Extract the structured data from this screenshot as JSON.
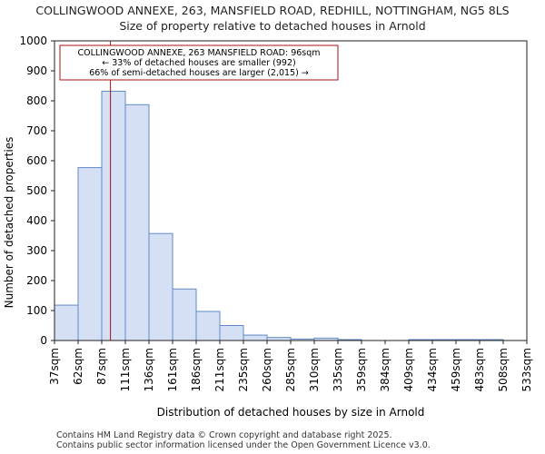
{
  "title": "COLLINGWOOD ANNEXE, 263, MANSFIELD ROAD, REDHILL, NOTTINGHAM, NG5 8LS",
  "subtitle": "Size of property relative to detached houses in Arnold",
  "footer": {
    "line1": "Contains HM Land Registry data © Crown copyright and database right 2025.",
    "line2": "Contains public sector information licensed under the Open Government Licence v3.0."
  },
  "colors": {
    "bar_fill": "#d6e0f5",
    "bar_stroke": "#5f8ac7",
    "marker": "#aa1111",
    "annotation_border": "#aa1111"
  },
  "chart_data": {
    "type": "bar",
    "title": "Size of property relative to detached houses in Arnold",
    "xlabel": "Distribution of detached houses by size in Arnold",
    "ylabel": "Number of detached properties",
    "ylim": [
      0,
      1000
    ],
    "yticks": [
      0,
      100,
      200,
      300,
      400,
      500,
      600,
      700,
      800,
      900,
      1000
    ],
    "bin_edges": [
      "37sqm",
      "62sqm",
      "87sqm",
      "111sqm",
      "136sqm",
      "161sqm",
      "186sqm",
      "211sqm",
      "235sqm",
      "260sqm",
      "285sqm",
      "310sqm",
      "335sqm",
      "359sqm",
      "384sqm",
      "409sqm",
      "434sqm",
      "459sqm",
      "483sqm",
      "508sqm",
      "533sqm"
    ],
    "values": [
      118,
      577,
      832,
      787,
      357,
      172,
      97,
      50,
      18,
      10,
      5,
      8,
      3,
      0,
      0,
      3,
      3,
      3,
      3,
      0
    ],
    "marker": {
      "value_sqm": 96,
      "bin_position": 2.37
    },
    "annotation": {
      "line1": "COLLINGWOOD ANNEXE, 263 MANSFIELD ROAD: 96sqm",
      "line2": "← 33% of detached houses are smaller (992)",
      "line3": "66% of semi-detached houses are larger (2,015) →"
    },
    "grid": false
  }
}
